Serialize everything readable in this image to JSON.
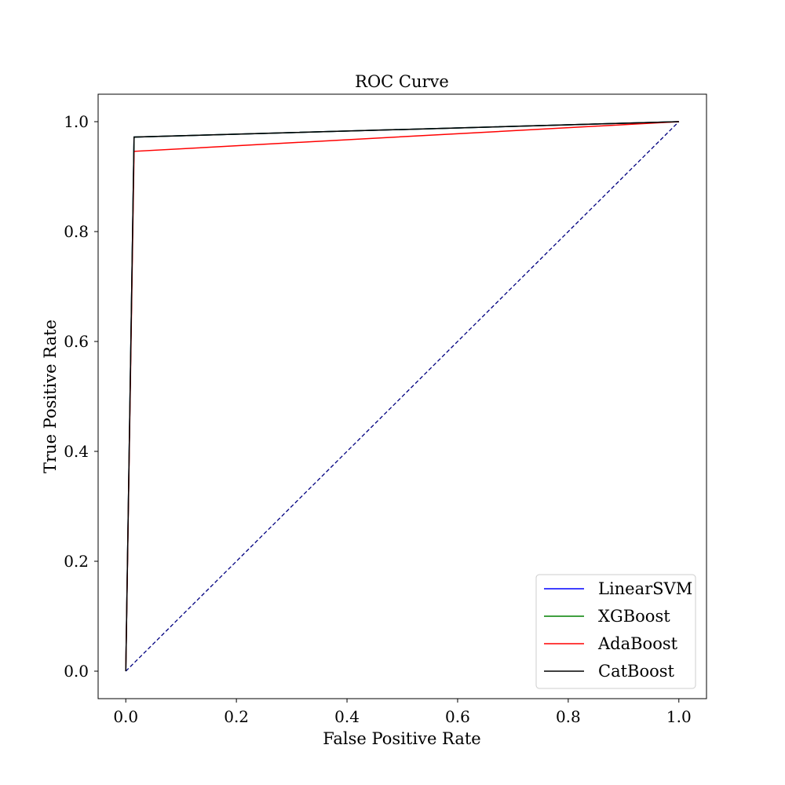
{
  "chart_data": {
    "type": "line",
    "title": "ROC Curve",
    "xlabel": "False Positive Rate",
    "ylabel": "True Positive Rate",
    "xlim": [
      -0.05,
      1.05
    ],
    "ylim": [
      -0.05,
      1.05
    ],
    "xticks": [
      0.0,
      0.2,
      0.4,
      0.6,
      0.8,
      1.0
    ],
    "yticks": [
      0.0,
      0.2,
      0.4,
      0.6,
      0.8,
      1.0
    ],
    "xtick_labels": [
      "0.0",
      "0.2",
      "0.4",
      "0.6",
      "0.8",
      "1.0"
    ],
    "ytick_labels": [
      "0.0",
      "0.2",
      "0.4",
      "0.6",
      "0.8",
      "1.0"
    ],
    "grid": false,
    "legend_position": "lower-right",
    "series": [
      {
        "name": "LinearSVM",
        "color": "#0000ff",
        "x": [
          0.0,
          0.015,
          1.0
        ],
        "y": [
          0.0,
          0.972,
          1.0
        ]
      },
      {
        "name": "XGBoost",
        "color": "#008000",
        "x": [
          0.0,
          0.015,
          1.0
        ],
        "y": [
          0.0,
          0.972,
          1.0
        ]
      },
      {
        "name": "AdaBoost",
        "color": "#ff0000",
        "x": [
          0.0,
          0.015,
          1.0
        ],
        "y": [
          0.0,
          0.946,
          1.0
        ]
      },
      {
        "name": "CatBoost",
        "color": "#000000",
        "x": [
          0.0,
          0.015,
          1.0
        ],
        "y": [
          0.0,
          0.972,
          1.0
        ]
      }
    ],
    "reference_line": {
      "color": "#000080",
      "style": "dashed",
      "x": [
        0.0,
        1.0
      ],
      "y": [
        0.0,
        1.0
      ]
    }
  }
}
